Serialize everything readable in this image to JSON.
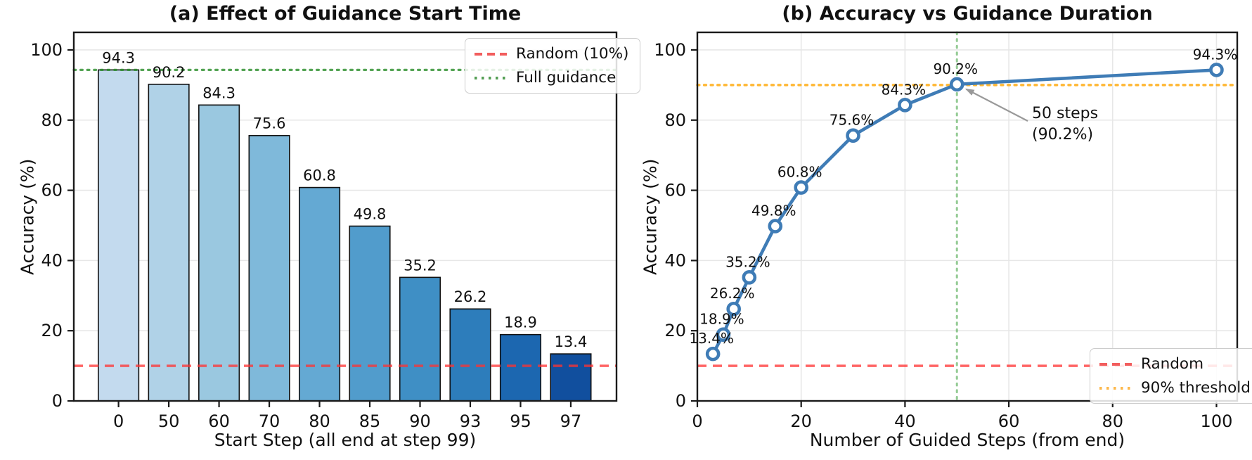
{
  "figure": {
    "background": "#ffffff"
  },
  "colors": {
    "bar_edge": "#111111",
    "data_line_blue": "#3f7cb6",
    "random_line_red": "#f25d5d",
    "full_guidance_green": "#539e53",
    "threshold_orange": "#fdb84c",
    "vertical_marker_green": "#8cc88c",
    "grid": "#e7e7e7",
    "spine": "#1a1a1a",
    "annotation_arrow": "#999999"
  },
  "chart_data": [
    {
      "type": "bar",
      "title": "(a) Effect of Guidance Start Time",
      "xlabel": "Start Step (all end at step 99)",
      "ylabel": "Accuracy (%)",
      "categories": [
        "0",
        "50",
        "60",
        "70",
        "80",
        "85",
        "90",
        "93",
        "95",
        "97"
      ],
      "values": [
        94.3,
        90.2,
        84.3,
        75.6,
        60.8,
        49.8,
        35.2,
        26.2,
        18.9,
        13.4
      ],
      "value_labels": [
        "94.3",
        "90.2",
        "84.3",
        "75.6",
        "60.8",
        "49.8",
        "35.2",
        "26.2",
        "18.9",
        "13.4"
      ],
      "bar_colors": [
        "#c3daee",
        "#b0d2e7",
        "#9ac8e0",
        "#7fb9da",
        "#64a9d3",
        "#519ccc",
        "#3f8fc5",
        "#2d7dbb",
        "#1c67b0",
        "#114f9e"
      ],
      "yticks": [
        0,
        20,
        40,
        60,
        80,
        100
      ],
      "ylim": [
        0,
        105
      ],
      "grid": "y",
      "legend_position": "top-right",
      "reference_lines": [
        {
          "name": "random",
          "label": "Random (10%)",
          "orientation": "h",
          "value": 10,
          "style": "dashed",
          "color": "rgba(255,50,50,0.75)",
          "width": 3.5
        },
        {
          "name": "full-guidance",
          "label": "Full guidance",
          "orientation": "h",
          "value": 94.3,
          "style": "dotted",
          "color": "rgba(40,140,40,0.8)",
          "width": 3.2
        }
      ],
      "legend_entries": [
        {
          "label": "Random (10%)",
          "style": "dashed",
          "color": "#f25d5d"
        },
        {
          "label": "Full guidance",
          "style": "dotted",
          "color": "#539e53"
        }
      ]
    },
    {
      "type": "line",
      "title": "(b) Accuracy vs Guidance Duration",
      "xlabel": "Number of Guided Steps (from end)",
      "ylabel": "Accuracy (%)",
      "x": [
        3,
        5,
        7,
        10,
        15,
        20,
        30,
        40,
        50,
        100
      ],
      "y": [
        13.4,
        18.9,
        26.2,
        35.2,
        49.8,
        60.8,
        75.6,
        84.3,
        90.2,
        94.3
      ],
      "point_labels": [
        "13.4%",
        "18.9%",
        "26.2%",
        "35.2%",
        "49.8%",
        "60.8%",
        "75.6%",
        "84.3%",
        "90.2%",
        "94.3%"
      ],
      "xticks": [
        0,
        20,
        40,
        60,
        80,
        100
      ],
      "yticks": [
        0,
        20,
        40,
        60,
        80,
        100
      ],
      "xlim": [
        0,
        104
      ],
      "ylim": [
        0,
        105
      ],
      "grid": "both",
      "line_color": "#3f7cb6",
      "marker": "circle-open",
      "legend_position": "bottom-right",
      "reference_lines": [
        {
          "name": "random",
          "label": "Random",
          "orientation": "h",
          "value": 10,
          "style": "dashed",
          "color": "rgba(255,50,50,0.75)",
          "width": 3.5
        },
        {
          "name": "threshold-90",
          "label": "90% threshold",
          "orientation": "h",
          "value": 90,
          "style": "dotted",
          "color": "rgba(255,165,0,0.8)",
          "width": 3.5
        },
        {
          "name": "steps-50-marker",
          "orientation": "v",
          "value": 50,
          "style": "dotted",
          "color": "rgba(60,160,60,0.55)",
          "width": 3
        }
      ],
      "annotation": {
        "lines": [
          "50 steps",
          "(90.2%)"
        ],
        "target_x": 50,
        "target_y": 90.2,
        "arrow_color": "#999999"
      },
      "legend_entries": [
        {
          "label": "Random",
          "style": "dashed",
          "color": "#f25d5d"
        },
        {
          "label": "90% threshold",
          "style": "dotted",
          "color": "#fdb84c"
        }
      ]
    }
  ]
}
